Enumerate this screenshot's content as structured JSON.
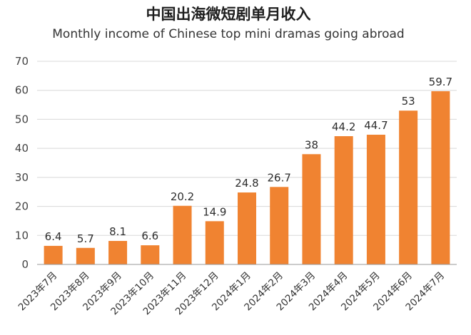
{
  "title_zh": "中国出海微短剧单月收入",
  "title_en": "Monthly income of Chinese top mini dramas going abroad",
  "colors": {
    "bar": "#f08331",
    "grid": "#d8d8d8",
    "axis": "#9a9a9a"
  },
  "chart_data": {
    "type": "bar",
    "title": "中国出海微短剧单月收入",
    "subtitle": "Monthly income of Chinese top mini dramas going abroad",
    "categories": [
      "2023年7月",
      "2023年8月",
      "2023年9月",
      "2023年10月",
      "2023年11月",
      "2023年12月",
      "2024年1月",
      "2024年2月",
      "2024年3月",
      "2024年4月",
      "2024年5月",
      "2024年6月",
      "2024年7月"
    ],
    "values": [
      6.4,
      5.7,
      8.1,
      6.6,
      20.2,
      14.9,
      24.8,
      26.7,
      38,
      44.2,
      44.7,
      53,
      59.7
    ],
    "data_labels": [
      "6.4",
      "5.7",
      "8.1",
      "6.6",
      "20.2",
      "14.9",
      "24.8",
      "26.7",
      "38",
      "44.2",
      "44.7",
      "53",
      "59.7"
    ],
    "yticks": [
      "0",
      "10",
      "20",
      "30",
      "40",
      "50",
      "60",
      "70"
    ],
    "ylim": [
      0,
      70
    ],
    "xlabel": "",
    "ylabel": "",
    "grid": true
  }
}
